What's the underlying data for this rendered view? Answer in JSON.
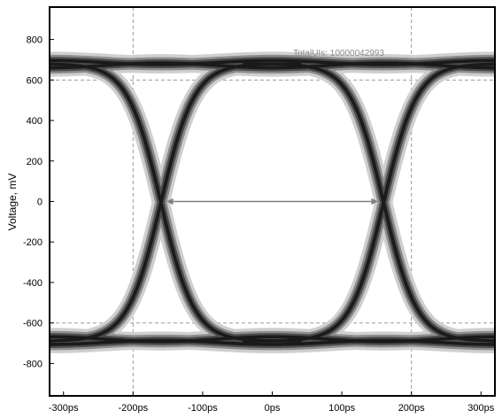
{
  "chart_data": {
    "type": "line",
    "title": "",
    "xlabel": "",
    "ylabel": "Voltage, mV",
    "x_unit": "ps",
    "xlim": [
      -320,
      320
    ],
    "ylim": [
      -960,
      960
    ],
    "x_ticks": [
      -300,
      -200,
      -100,
      0,
      100,
      200,
      300
    ],
    "x_tick_labels": [
      "-300ps",
      "-200ps",
      "-100ps",
      "0ps",
      "100ps",
      "200ps",
      "300ps"
    ],
    "y_ticks": [
      800,
      600,
      400,
      200,
      0,
      -200,
      -400,
      -600,
      -800
    ],
    "y_tick_labels": [
      "800",
      "600",
      "400",
      "200",
      "0",
      "-200",
      "-400",
      "-600",
      "-800"
    ],
    "grid_x": [
      -200,
      200
    ],
    "grid_y": [
      600,
      -600
    ],
    "grid": true,
    "legend": "none",
    "eye": {
      "crossings_ps": [
        -160,
        160
      ],
      "high_level_mv": 680,
      "low_level_mv": -690,
      "transition_half_width_ps": 110,
      "curve_color": "#1a1a1a",
      "halo_color": "#8c8c8c",
      "fill_color": "#cfcfcf"
    },
    "annotations": [
      {
        "type": "double-arrow",
        "from": [
          -150,
          0
        ],
        "to": [
          150,
          0
        ],
        "color": "#808080"
      },
      {
        "type": "text",
        "text": "TotalUIs: 10000042993",
        "at": [
          30,
          720
        ],
        "color": "#8a8a8a"
      }
    ]
  }
}
